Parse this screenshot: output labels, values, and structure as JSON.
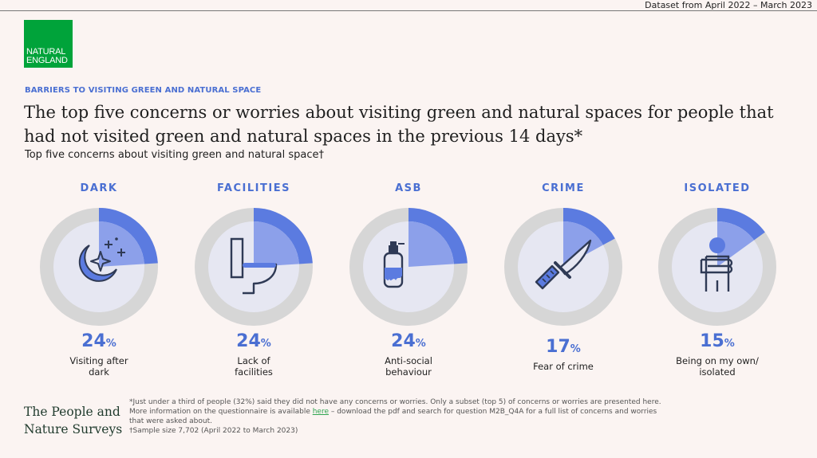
{
  "header": {
    "dataset": "Dataset from April 2022 – March 2023",
    "logo_line1": "NATURAL",
    "logo_line2": "ENGLAND"
  },
  "eyebrow": "BARRIERS TO VISITING GREEN AND NATURAL SPACE",
  "title": "The top five concerns or worries about visiting green and natural spaces for people that had not visited green and natural spaces in the previous 14 days*",
  "subtitle": "Top five concerns about visiting green and natural space†",
  "colors": {
    "accent": "#4a6fd2",
    "ring_outer": "#d6d6d6",
    "ring_inner": "#e6e7f2",
    "wedge_outer": "#5b7be0",
    "wedge_inner": "#8ca0ea",
    "logo_green": "#00a33a"
  },
  "chart_data": {
    "type": "pie",
    "categories": [
      "DARK",
      "FACILITIES",
      "ASB",
      "CRIME",
      "ISOLATED"
    ],
    "values": [
      24,
      24,
      24,
      17,
      15
    ],
    "unit": "%",
    "labels": [
      "Visiting after dark",
      "Lack of facilities",
      "Anti-social behaviour",
      "Fear of crime",
      "Being on my own/ isolated"
    ],
    "icons": [
      "moon-stars-icon",
      "toilet-icon",
      "spray-can-icon",
      "knife-icon",
      "person-arms-crossed-icon"
    ]
  },
  "items": [
    {
      "category": "DARK",
      "value": "24",
      "sign": "%",
      "label_l1": "Visiting after",
      "label_l2": "dark"
    },
    {
      "category": "FACILITIES",
      "value": "24",
      "sign": "%",
      "label_l1": "Lack of",
      "label_l2": "facilities"
    },
    {
      "category": "ASB",
      "value": "24",
      "sign": "%",
      "label_l1": "Anti-social",
      "label_l2": "behaviour"
    },
    {
      "category": "CRIME",
      "value": "17",
      "sign": "%",
      "label_l1": "Fear of crime",
      "label_l2": ""
    },
    {
      "category": "ISOLATED",
      "value": "15",
      "sign": "%",
      "label_l1": "Being on my own/",
      "label_l2": "isolated"
    }
  ],
  "footer": {
    "brand_l1": "The People and",
    "brand_l2": "Nature Surveys",
    "note1": "*Just under a third of people (32%) said they did not have any concerns or worries. Only a subset (top 5) of concerns or worries are presented here.",
    "note2a": "More information on the questionnaire is available ",
    "note2_link": "here",
    "note2b": " – download the pdf and search for question M2B_Q4A for a full list of concerns and worries",
    "note3": "that were asked about.",
    "note4": "†Sample size 7,702 (April 2022 to March 2023)"
  }
}
